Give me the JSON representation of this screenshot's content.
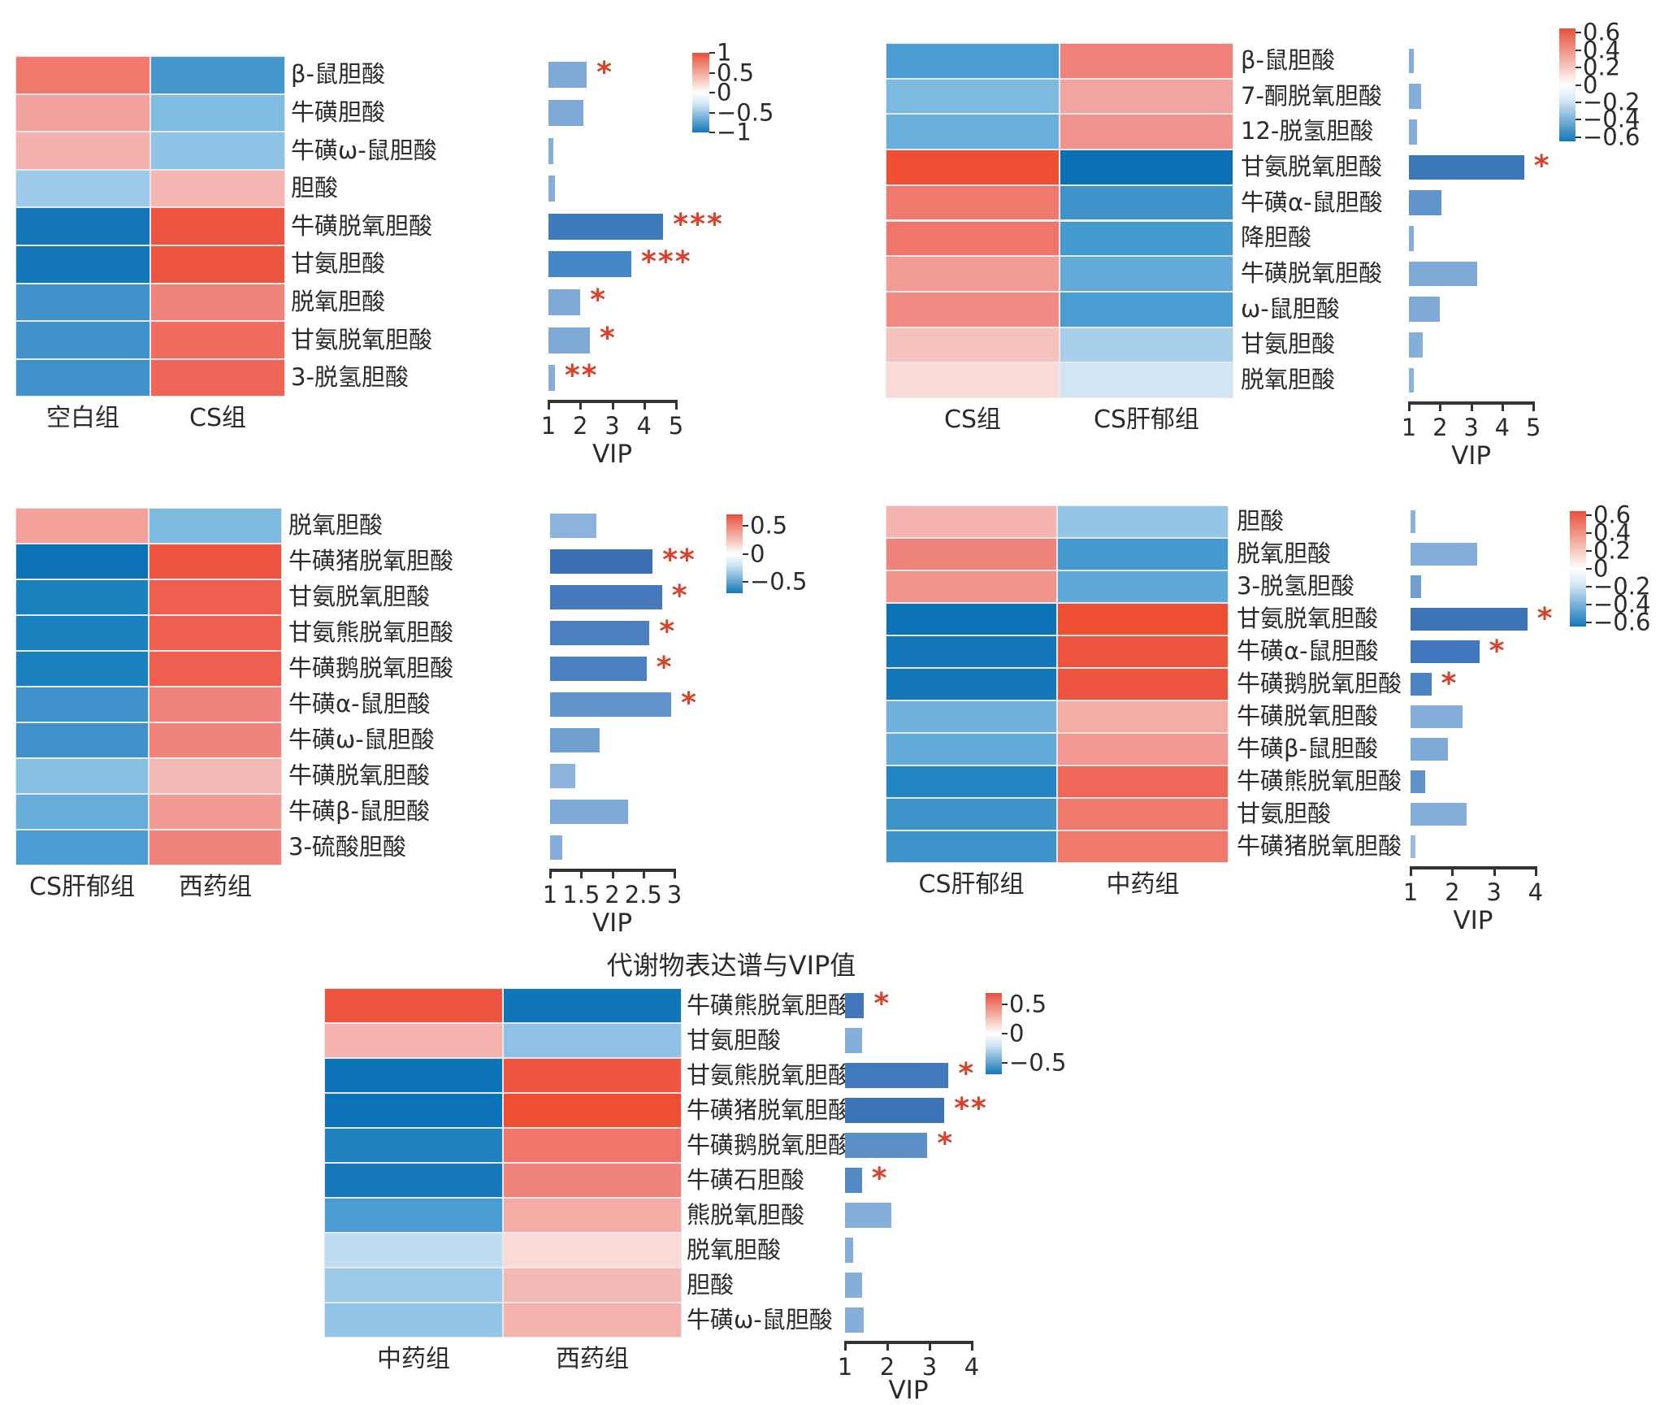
{
  "accent": {
    "star_color": "#D8422A",
    "axis_color": "#333333",
    "text_color": "#2b2b2b"
  },
  "chart_data": {
    "type": "heatmap+bar",
    "description": "Metabolite expression heatmaps (two groups per panel) with VIP bar charts and significance stars",
    "panels": [
      {
        "name": "blank-vs-cs",
        "groups": [
          "空白组",
          "CS组"
        ],
        "metabolites": [
          "β-鼠胆酸",
          "牛磺胆酸",
          "牛磺ω-鼠胆酸",
          "胆酸",
          "牛磺脱氧胆酸",
          "甘氨胆酸",
          "脱氧胆酸",
          "甘氨脱氧胆酸",
          "3-脱氢胆酸"
        ],
        "cell_colors": [
          [
            "#F0786C",
            "#4598CE"
          ],
          [
            "#F2A39E",
            "#7FBCE1"
          ],
          [
            "#F4B2AE",
            "#8FC3E5"
          ],
          [
            "#9CCAE8",
            "#F5B7B3"
          ],
          [
            "#1377B8",
            "#EE5540"
          ],
          [
            "#1377B8",
            "#EE5540"
          ],
          [
            "#3F93CA",
            "#F0837B"
          ],
          [
            "#3F93CA",
            "#EF6C5F"
          ],
          [
            "#3F93CA",
            "#EF6557"
          ]
        ],
        "vip": [
          2.2,
          2.1,
          1.15,
          1.2,
          4.6,
          3.6,
          2.0,
          2.3,
          1.2
        ],
        "sig": [
          "*",
          "",
          "",
          "",
          "***",
          "***",
          "*",
          "*",
          "**"
        ],
        "bar_colors": [
          "#7FA9D6",
          "#7FA9D6",
          "#85AFDA",
          "#85AFDA",
          "#3D7BBC",
          "#4587C6",
          "#7FA9D6",
          "#7FA9D6",
          "#85AFDA"
        ],
        "vip_axis": {
          "min": 1,
          "max": 5,
          "ticks": [
            "1",
            "2",
            "3",
            "4",
            "5"
          ],
          "label": "VIP"
        },
        "colorbar": {
          "vmax": 1,
          "vmin": -1,
          "ticks": [
            {
              "v": 1,
              "label": "1"
            },
            {
              "v": 0.5,
              "label": "0.5"
            },
            {
              "v": 0,
              "label": "0"
            },
            {
              "v": -0.5,
              "label": "−0.5"
            },
            {
              "v": -1,
              "label": "−1"
            }
          ],
          "top_color": "#E8503B",
          "bottom_color": "#1377B8"
        }
      },
      {
        "name": "cs-vs-cs-ganyu",
        "groups": [
          "CS组",
          "CS肝郁组"
        ],
        "metabolites": [
          "β-鼠胆酸",
          "7-酮脱氧胆酸",
          "12-脱氢胆酸",
          "甘氨脱氧胆酸",
          "牛磺α-鼠胆酸",
          "降胆酸",
          "牛磺脱氧胆酸",
          "ω-鼠胆酸",
          "甘氨胆酸",
          "脱氧胆酸"
        ],
        "cell_colors": [
          [
            "#4A9CD2",
            "#F08078"
          ],
          [
            "#7CBAE0",
            "#F2A5A0"
          ],
          [
            "#69AFDB",
            "#F2948D"
          ],
          [
            "#EE4F33",
            "#0C70B6"
          ],
          [
            "#F0796D",
            "#3E93CB"
          ],
          [
            "#F0766B",
            "#4499CE"
          ],
          [
            "#F29C96",
            "#62ABD8"
          ],
          [
            "#F08A82",
            "#4A9DD2"
          ],
          [
            "#F6C2BE",
            "#A8D0EA"
          ],
          [
            "#FADAD6",
            "#D2E5F4"
          ]
        ],
        "vip": [
          1.1,
          1.4,
          1.25,
          4.7,
          2.05,
          1.1,
          3.2,
          2.0,
          1.45,
          1.1
        ],
        "sig": [
          "",
          "",
          "",
          "*",
          "",
          "",
          "",
          "",
          "",
          ""
        ],
        "bar_colors": [
          "#85AFDA",
          "#85AFDA",
          "#85AFDA",
          "#3C77B8",
          "#6094CA",
          "#85AFDA",
          "#7FA9D6",
          "#7FA9D6",
          "#85AFDA",
          "#8CB3DC"
        ],
        "vip_axis": {
          "min": 1,
          "max": 5,
          "ticks": [
            "1",
            "2",
            "3",
            "4",
            "5"
          ],
          "label": "VIP"
        },
        "colorbar": {
          "vmax": 0.65,
          "vmin": -0.65,
          "ticks": [
            {
              "v": 0.6,
              "label": "0.6"
            },
            {
              "v": 0.4,
              "label": "0.4"
            },
            {
              "v": 0.2,
              "label": "0.2"
            },
            {
              "v": 0,
              "label": "0"
            },
            {
              "v": -0.2,
              "label": "−0.2"
            },
            {
              "v": -0.4,
              "label": "−0.4"
            },
            {
              "v": -0.6,
              "label": "−0.6"
            }
          ],
          "top_color": "#E8503B",
          "bottom_color": "#1377B8"
        }
      },
      {
        "name": "cs-ganyu-vs-western",
        "groups": [
          "CS肝郁组",
          "西药组"
        ],
        "metabolites": [
          "脱氧胆酸",
          "牛磺猪脱氧胆酸",
          "甘氨脱氧胆酸",
          "甘氨熊脱氧胆酸",
          "牛磺鹅脱氧胆酸",
          "牛磺α-鼠胆酸",
          "牛磺ω-鼠胆酸",
          "牛磺脱氧胆酸",
          "牛磺β-鼠胆酸",
          "3-硫酸胆酸"
        ],
        "cell_colors": [
          [
            "#F4A19C",
            "#7CBAE0"
          ],
          [
            "#0C72B6",
            "#EE5540"
          ],
          [
            "#1B80BE",
            "#EF6051"
          ],
          [
            "#1B80BE",
            "#EF6051"
          ],
          [
            "#1B80BE",
            "#EF6051"
          ],
          [
            "#3E92C9",
            "#F0837B"
          ],
          [
            "#3E92C9",
            "#F0837B"
          ],
          [
            "#85BFE3",
            "#F5B9B5"
          ],
          [
            "#66ADD9",
            "#F29B94"
          ],
          [
            "#4A9CD2",
            "#F0837B"
          ]
        ],
        "vip": [
          1.75,
          2.65,
          2.8,
          2.6,
          2.55,
          2.95,
          1.8,
          1.4,
          2.25,
          1.2
        ],
        "sig": [
          "",
          "**",
          "*",
          "*",
          "*",
          "*",
          "",
          "",
          "",
          ""
        ],
        "bar_colors": [
          "#8CB3DC",
          "#3B6FB3",
          "#4579BB",
          "#4A80C0",
          "#4A80C0",
          "#6094CA",
          "#6FA0D0",
          "#8CB3DC",
          "#7FA9D6",
          "#85AFDA"
        ],
        "vip_axis": {
          "min": 1,
          "max": 3,
          "ticks": [
            "1",
            "1.5",
            "2",
            "2.5",
            "3"
          ],
          "label": "VIP"
        },
        "colorbar": {
          "vmax": 0.7,
          "vmin": -0.7,
          "ticks": [
            {
              "v": 0.5,
              "label": "0.5"
            },
            {
              "v": 0,
              "label": "0"
            },
            {
              "v": -0.5,
              "label": "−0.5"
            }
          ],
          "top_color": "#E8503B",
          "bottom_color": "#1377B8"
        }
      },
      {
        "name": "cs-ganyu-vs-chinese",
        "groups": [
          "CS肝郁组",
          "中药组"
        ],
        "metabolites": [
          "胆酸",
          "脱氧胆酸",
          "3-脱氢胆酸",
          "甘氨脱氧胆酸",
          "牛磺α-鼠胆酸",
          "牛磺鹅脱氧胆酸",
          "牛磺脱氧胆酸",
          "牛磺β-鼠胆酸",
          "牛磺熊脱氧胆酸",
          "甘氨胆酸",
          "牛磺猪脱氧胆酸"
        ],
        "cell_colors": [
          [
            "#F5B3AF",
            "#93C5E6"
          ],
          [
            "#F0837B",
            "#4499CE"
          ],
          [
            "#F2938C",
            "#5FA9D7"
          ],
          [
            "#0C72B6",
            "#EE4F33"
          ],
          [
            "#1478B8",
            "#EE5540"
          ],
          [
            "#1478B8",
            "#EE5540"
          ],
          [
            "#6FB2DC",
            "#F4ACA6"
          ],
          [
            "#62ABD8",
            "#F29890"
          ],
          [
            "#2386C2",
            "#EF6758"
          ],
          [
            "#3E93CB",
            "#F0796D"
          ],
          [
            "#3E93CB",
            "#F0796D"
          ]
        ],
        "vip": [
          1.05,
          2.6,
          1.25,
          3.8,
          2.65,
          1.5,
          2.25,
          1.9,
          1.35,
          2.35,
          1.05
        ],
        "sig": [
          "",
          "",
          "",
          "*",
          "*",
          "*",
          "",
          "",
          "",
          "",
          ""
        ],
        "bar_colors": [
          "#8CB3DC",
          "#85AFDA",
          "#6FA0D0",
          "#3C74B6",
          "#4077BC",
          "#4B82C1",
          "#85AFDA",
          "#7FA9D6",
          "#5E92C8",
          "#85AFDA",
          "#9BBCE0"
        ],
        "vip_axis": {
          "min": 1,
          "max": 4,
          "ticks": [
            "1",
            "2",
            "3",
            "4"
          ],
          "label": "VIP"
        },
        "colorbar": {
          "vmax": 0.65,
          "vmin": -0.65,
          "ticks": [
            {
              "v": 0.6,
              "label": "0.6"
            },
            {
              "v": 0.4,
              "label": "0.4"
            },
            {
              "v": 0.2,
              "label": "0.2"
            },
            {
              "v": 0,
              "label": "0"
            },
            {
              "v": -0.2,
              "label": "−0.2"
            },
            {
              "v": -0.4,
              "label": "−0.4"
            },
            {
              "v": -0.6,
              "label": "−0.6"
            }
          ],
          "top_color": "#E8503B",
          "bottom_color": "#1377B8"
        }
      },
      {
        "name": "chinese-vs-western",
        "title": "代谢物表达谱与VIP值",
        "groups": [
          "中药组",
          "西药组"
        ],
        "metabolites": [
          "牛磺熊脱氧胆酸",
          "甘氨胆酸",
          "甘氨熊脱氧胆酸",
          "牛磺猪脱氧胆酸",
          "牛磺鹅脱氧胆酸",
          "牛磺石胆酸",
          "熊脱氧胆酸",
          "脱氧胆酸",
          "胆酸",
          "牛磺ω-鼠胆酸"
        ],
        "cell_colors": [
          [
            "#EE5540",
            "#0F76B8"
          ],
          [
            "#F5B3AF",
            "#8FC2E5"
          ],
          [
            "#0C72B6",
            "#EE5540"
          ],
          [
            "#0C72B6",
            "#EE4F33"
          ],
          [
            "#1E82C0",
            "#F0766B"
          ],
          [
            "#1578B8",
            "#F0837B"
          ],
          [
            "#4A9DD2",
            "#F4ACA6"
          ],
          [
            "#C0DCF0",
            "#FADAD6"
          ],
          [
            "#9CCAE8",
            "#F5B9B5"
          ],
          [
            "#93C5E6",
            "#F4B3AE"
          ]
        ],
        "vip": [
          1.45,
          1.4,
          3.45,
          3.35,
          2.95,
          1.4,
          2.1,
          1.2,
          1.4,
          1.45
        ],
        "sig": [
          "*",
          "",
          "*",
          "**",
          "*",
          "*",
          "",
          "",
          "",
          ""
        ],
        "bar_colors": [
          "#4377BB",
          "#85AFDA",
          "#4379BD",
          "#3C73B6",
          "#5D8FC8",
          "#5389C5",
          "#85AFDA",
          "#85AFDA",
          "#85AFDA",
          "#85AFDA"
        ],
        "vip_axis": {
          "min": 1,
          "max": 4,
          "ticks": [
            "1",
            "2",
            "3",
            "4"
          ],
          "label": "VIP"
        },
        "colorbar": {
          "vmax": 0.7,
          "vmin": -0.7,
          "ticks": [
            {
              "v": 0.5,
              "label": "0.5"
            },
            {
              "v": 0,
              "label": "0"
            },
            {
              "v": -0.5,
              "label": "−0.5"
            }
          ],
          "top_color": "#E8503B",
          "bottom_color": "#1377B8"
        }
      }
    ]
  }
}
